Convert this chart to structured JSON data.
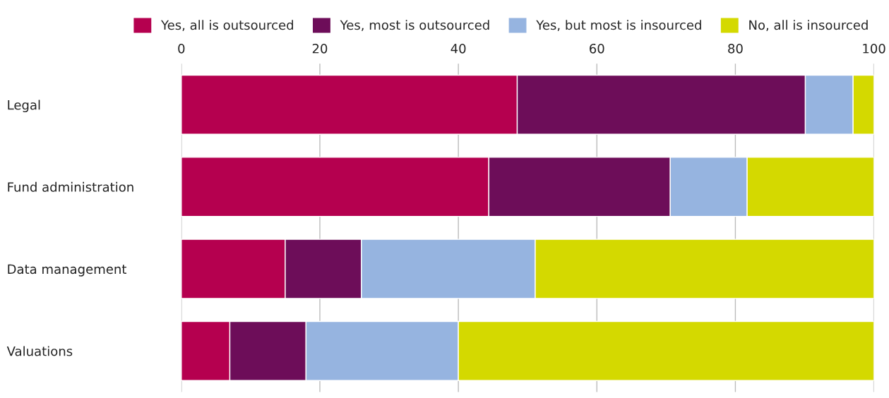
{
  "chart_data": {
    "type": "bar",
    "orientation": "horizontal",
    "stacked": true,
    "categories": [
      "Legal",
      "Fund administration",
      "Data management",
      "Valuations"
    ],
    "series": [
      {
        "name": "Yes, all is outsourced",
        "color": "#b5004f",
        "values": [
          48.5,
          44.4,
          15.0,
          7.0
        ]
      },
      {
        "name": "Yes, most is outsourced",
        "color": "#6d0d59",
        "values": [
          41.6,
          26.2,
          11.0,
          11.0
        ]
      },
      {
        "name": "Yes, but most is insourced",
        "color": "#96b4e0",
        "values": [
          6.9,
          11.1,
          25.1,
          22.0
        ]
      },
      {
        "name": "No, all is insourced",
        "color": "#d4d900",
        "values": [
          3.0,
          18.3,
          48.9,
          60.0
        ]
      }
    ],
    "xlim": [
      0,
      100
    ],
    "xticks": [
      0,
      20,
      40,
      60,
      80,
      100
    ],
    "grid": "x",
    "legend": "top right"
  }
}
